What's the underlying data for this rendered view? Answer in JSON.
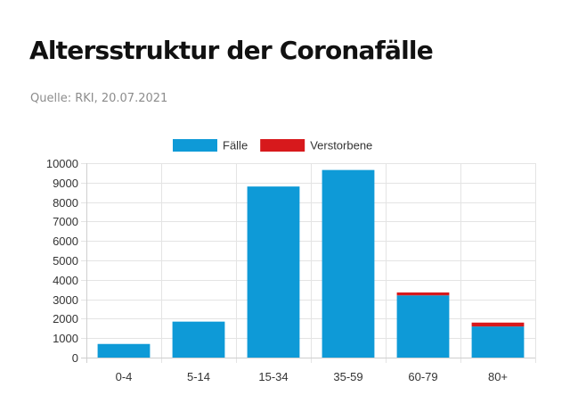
{
  "header": {
    "title": "Altersstruktur der Coronafälle",
    "source": "Quelle: RKI, 20.07.2021"
  },
  "chart_data": {
    "type": "bar",
    "stacked": true,
    "categories": [
      "0-4",
      "5-14",
      "15-34",
      "35-59",
      "60-79",
      "80+"
    ],
    "series": [
      {
        "name": "Fälle",
        "color": "#0e9ad7",
        "values": [
          700,
          1850,
          8800,
          9650,
          3200,
          1600
        ]
      },
      {
        "name": "Verstorbene",
        "color": "#d7191c",
        "values": [
          0,
          0,
          0,
          0,
          150,
          200
        ]
      }
    ],
    "ylim": [
      0,
      10000
    ],
    "yticks": [
      0,
      1000,
      2000,
      3000,
      4000,
      5000,
      6000,
      7000,
      8000,
      9000,
      10000
    ],
    "grid": true,
    "legend_position": "top-center"
  }
}
